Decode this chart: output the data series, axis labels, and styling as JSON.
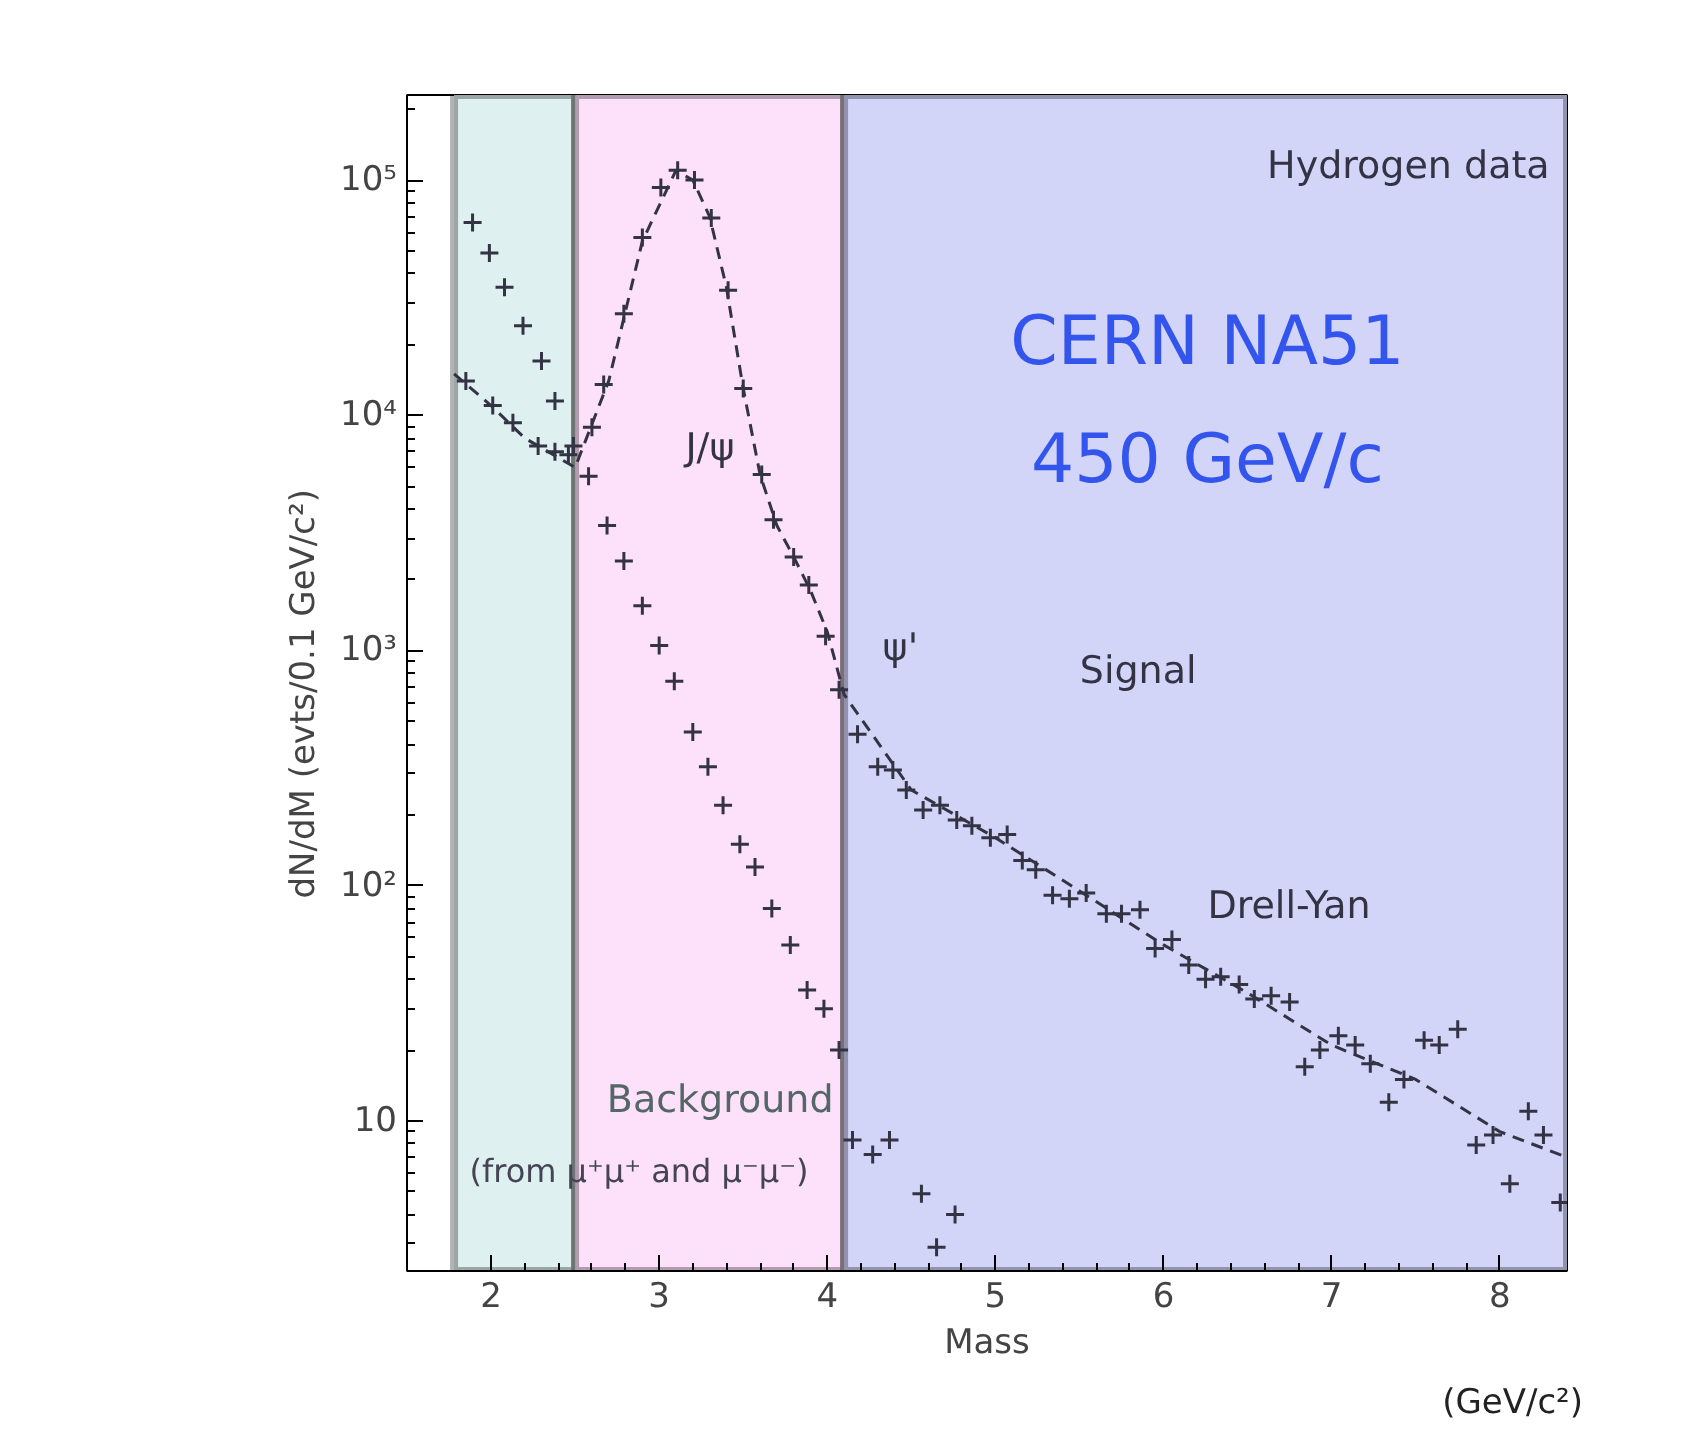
{
  "chart_data": {
    "type": "scatter",
    "xlabel": "Mass",
    "ylabel": "dN/dM   (evts/0.1 GeV/c²)",
    "log": "y",
    "xlim": [
      1.5,
      8.4
    ],
    "ylim": [
      2.3,
      230000
    ],
    "xticks": [
      2,
      3,
      4,
      5,
      6,
      7,
      8
    ],
    "yticks": [
      10,
      {
        "value": 100,
        "label": "10²"
      },
      {
        "value": 1000,
        "label": "10³"
      },
      {
        "value": 10000,
        "label": "10⁴"
      },
      {
        "value": 100000,
        "label": "10⁵"
      }
    ],
    "grid": false,
    "marker": "cross",
    "bands": [
      {
        "axis": "x",
        "from": 1.78,
        "to": 2.5,
        "label": null,
        "color": "#dff0f0"
      },
      {
        "axis": "x",
        "from": 2.5,
        "to": 4.1,
        "label": null,
        "color": "#fde0fa"
      },
      {
        "axis": "x",
        "from": 4.1,
        "to": 8.4,
        "label": null,
        "color": "#d2d4f8"
      }
    ],
    "series": [
      {
        "type": "scatter",
        "color": "#333344",
        "x": [
          1.85,
          2.01,
          2.13,
          2.28,
          2.38,
          2.46,
          2.49,
          2.6,
          2.67,
          2.79,
          2.9,
          3.01,
          3.11,
          3.21,
          3.31,
          3.41,
          3.5,
          3.61,
          3.68,
          3.8,
          3.89,
          3.99,
          4.07,
          4.18,
          4.3,
          4.39,
          4.47,
          4.57,
          4.67,
          4.77,
          4.86,
          4.97,
          5.07,
          5.16,
          5.24,
          5.34,
          5.44,
          5.54,
          5.66,
          5.75,
          5.86,
          5.95,
          6.05,
          6.15,
          6.25,
          6.34,
          6.45,
          6.54,
          6.64,
          6.75,
          6.84,
          6.93,
          7.04,
          7.14,
          7.23,
          7.34,
          7.43,
          7.55,
          7.64,
          7.75,
          7.86,
          7.96,
          8.06,
          8.17,
          8.26,
          8.36
        ],
        "values": [
          14000,
          11000,
          9300,
          7400,
          7000,
          6800,
          7400,
          8900,
          13500,
          27000,
          57000,
          93000,
          110000,
          100000,
          69000,
          34000,
          13000,
          5600,
          3600,
          2500,
          1900,
          1150,
          680,
          440,
          320,
          310,
          255,
          210,
          220,
          190,
          180,
          160,
          165,
          128,
          117,
          91,
          88,
          93,
          76,
          76,
          79,
          54,
          59,
          46,
          40,
          41,
          38,
          33,
          34,
          32,
          17,
          20,
          23,
          21,
          17.5,
          12,
          15,
          22,
          21,
          24.5,
          7.9,
          8.7,
          5.4,
          11,
          8.7,
          4.5
        ]
      },
      {
        "type": "scatter",
        "color": "#333344",
        "x": [
          1.89,
          1.99,
          2.08,
          2.19,
          2.3,
          2.38,
          2.58,
          2.69,
          2.79,
          2.9,
          3.0,
          3.09,
          3.2,
          3.29,
          3.38,
          3.48,
          3.57,
          3.67,
          3.78,
          3.88,
          3.98,
          4.07,
          4.15,
          4.27,
          4.37,
          4.56,
          4.65,
          4.76
        ],
        "values": [
          66000,
          49000,
          35000,
          24000,
          17000,
          11500,
          5500,
          3400,
          2400,
          1550,
          1050,
          740,
          450,
          320,
          220,
          150,
          120,
          80,
          56,
          36,
          30,
          20,
          8.3,
          7.2,
          8.3,
          4.9,
          2.9,
          4.0
        ]
      },
      {
        "type": "line",
        "line_style": "dashed",
        "marker": "none",
        "color": "#333344",
        "x": [
          1.78,
          2.0,
          2.2,
          2.5,
          2.7,
          2.9,
          3.1,
          3.2,
          3.3,
          3.4,
          3.5,
          3.6,
          3.7,
          3.8,
          3.9,
          4.0,
          4.1,
          4.5,
          5.0,
          5.5,
          6.0,
          6.5,
          7.0,
          7.5,
          8.0,
          8.4
        ],
        "values": [
          15000,
          11000,
          8000,
          6000,
          14000,
          55000,
          110000,
          100000,
          70000,
          35000,
          13000,
          5600,
          3400,
          2500,
          1800,
          1200,
          650,
          255,
          160,
          95,
          56,
          35,
          21,
          15,
          9,
          7
        ]
      }
    ],
    "annotations": [
      "J/ψ",
      "ψ'",
      "Signal",
      "Drell-Yan",
      "Background",
      "(from μ⁺μ⁺ and μ⁻μ⁻)",
      "Hydrogen data",
      "CERN NA51",
      "450 GeV/c",
      "(GeV/c²)"
    ]
  }
}
